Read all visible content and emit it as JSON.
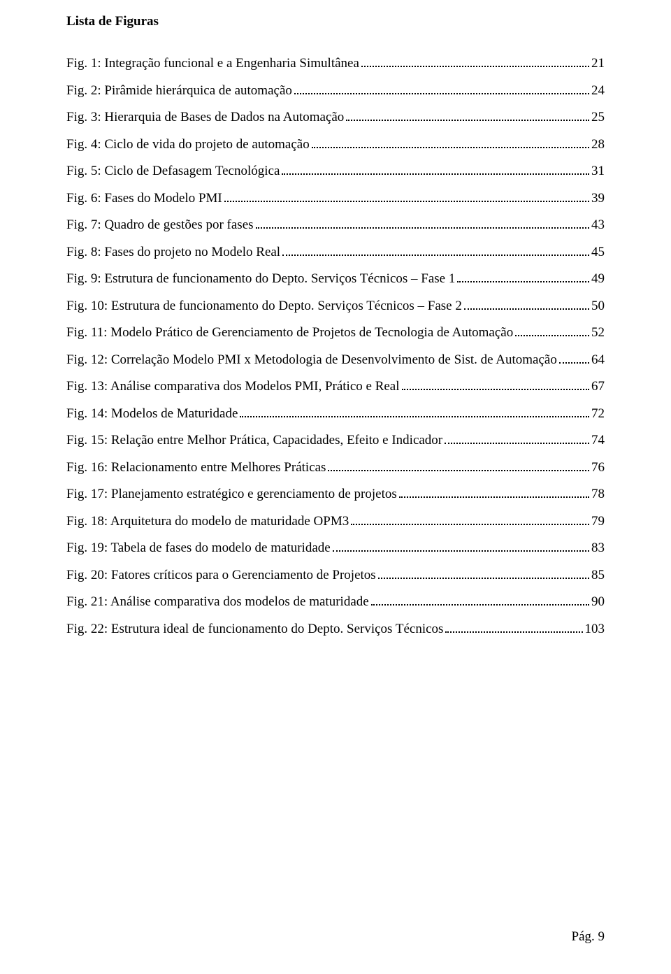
{
  "header": "Lista de Figuras",
  "entries": [
    {
      "text": "Fig. 1: Integração funcional e a Engenharia Simultânea",
      "page": "21"
    },
    {
      "text": "Fig. 2: Pirâmide hierárquica de automação",
      "page": "24"
    },
    {
      "text": "Fig. 3: Hierarquia de Bases de Dados na Automação",
      "page": "25"
    },
    {
      "text": "Fig. 4: Ciclo de vida do projeto de automação",
      "page": "28"
    },
    {
      "text": "Fig. 5: Ciclo de Defasagem Tecnológica",
      "page": "31"
    },
    {
      "text": "Fig. 6: Fases do Modelo PMI",
      "page": "39"
    },
    {
      "text": "Fig. 7: Quadro de gestões por fases",
      "page": "43"
    },
    {
      "text": "Fig. 8: Fases do projeto no Modelo Real",
      "page": "45"
    },
    {
      "text": "Fig. 9: Estrutura de funcionamento do Depto. Serviços Técnicos – Fase 1",
      "page": "49"
    },
    {
      "text": "Fig. 10: Estrutura de funcionamento do Depto. Serviços Técnicos – Fase 2",
      "page": "50"
    },
    {
      "text": "Fig. 11: Modelo Prático de Gerenciamento de Projetos de Tecnologia de Automação",
      "page": "52"
    },
    {
      "text": "Fig. 12: Correlação Modelo PMI x Metodologia de Desenvolvimento de Sist. de Automação",
      "page": "64"
    },
    {
      "text": "Fig. 13: Análise comparativa dos Modelos PMI, Prático e Real",
      "page": "67"
    },
    {
      "text": "Fig. 14: Modelos de Maturidade",
      "page": "72"
    },
    {
      "text": "Fig. 15: Relação entre Melhor Prática, Capacidades, Efeito e Indicador",
      "page": "74"
    },
    {
      "text": "Fig. 16: Relacionamento entre Melhores Práticas",
      "page": "76"
    },
    {
      "text": "Fig. 17: Planejamento estratégico e gerenciamento de projetos",
      "page": "78"
    },
    {
      "text": "Fig. 18: Arquitetura do modelo de maturidade OPM3",
      "page": "79"
    },
    {
      "text": "Fig. 19: Tabela de fases do modelo de maturidade",
      "page": "83"
    },
    {
      "text": "Fig. 20: Fatores críticos para o Gerenciamento de Projetos",
      "page": "85"
    },
    {
      "text": "Fig. 21: Análise comparativa dos modelos de maturidade",
      "page": "90"
    },
    {
      "text": "Fig. 22: Estrutura ideal de funcionamento do Depto. Serviços Técnicos",
      "page": "103"
    }
  ],
  "footer": "Pág. 9"
}
